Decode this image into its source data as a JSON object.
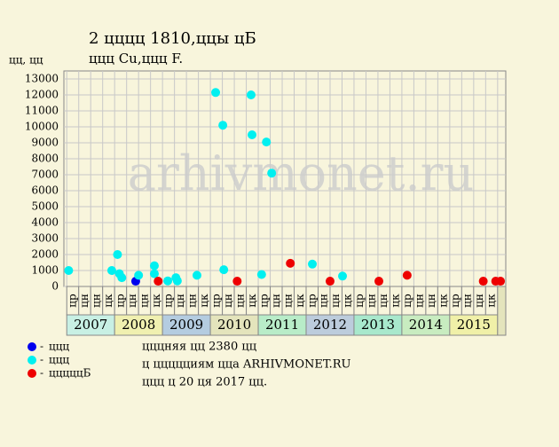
{
  "chart_data": {
    "type": "scatter",
    "title": "2 цццц 1810,ццы цБ",
    "subtitle": "ццц Cu,ццц F.",
    "y_label": "цц, цц",
    "watermark": "arhivmonet.ru",
    "xlim": [
      2006.94,
      2016.17
    ],
    "xticks": [
      2007,
      2008,
      2009,
      2010,
      2011,
      2012,
      2013,
      2014,
      2015
    ],
    "year_colors": [
      "#c8f0e4",
      "#f0f0b0",
      "#b4cce0",
      "#e4e4bc",
      "#b8ecc8",
      "#bcccdc",
      "#a8e8cc",
      "#c8ecc0",
      "#f0f0a8"
    ],
    "quarter_labels": [
      "цр",
      "цн",
      "цн",
      "цк"
    ],
    "ylim": [
      0,
      13500
    ],
    "yticks": [
      0,
      1000,
      2000,
      3000,
      4000,
      5000,
      6000,
      7000,
      8000,
      9000,
      10000,
      11000,
      12000,
      13000
    ],
    "grid": true,
    "series": [
      {
        "name": "ццц",
        "color": "#0000ee",
        "x": [
          2008.44
        ],
        "values": [
          330
        ]
      },
      {
        "name": "ццц",
        "color": "#00f0f0",
        "x": [
          2007.04,
          2007.94,
          2008.06,
          2008.1,
          2008.15,
          2008.5,
          2008.83,
          2008.83,
          2009.11,
          2009.28,
          2009.31,
          2009.72,
          2010.11,
          2010.26,
          2010.28,
          2010.85,
          2010.87,
          2011.17,
          2011.28,
          2011.07,
          2012.13,
          2012.76
        ],
        "values": [
          1000,
          1000,
          2000,
          800,
          550,
          700,
          1300,
          800,
          350,
          550,
          350,
          700,
          12150,
          10100,
          1050,
          12000,
          9500,
          9050,
          7100,
          750,
          1400,
          650
        ]
      },
      {
        "name": "цццццБ",
        "color": "#ee0000",
        "x": [
          2008.91,
          2010.56,
          2011.67,
          2012.5,
          2013.52,
          2014.11,
          2015.7,
          2015.96,
          2016.06
        ],
        "values": [
          330,
          330,
          1450,
          330,
          330,
          700,
          330,
          330,
          330
        ]
      }
    ],
    "notes": [
      "цццняя цц 2380 цц",
      "ц ццццциям цца ARHIVMONET.RU",
      "ццц ц 20 ця 2017 цц."
    ]
  }
}
